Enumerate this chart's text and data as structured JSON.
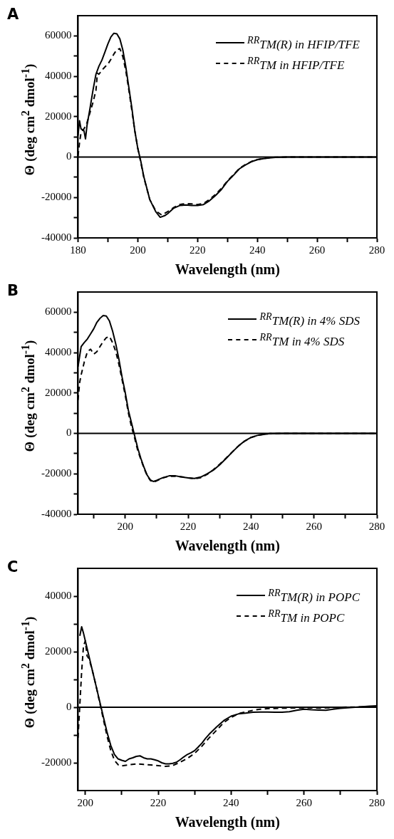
{
  "chart_data": [
    {
      "type": "line",
      "title": "A",
      "xlabel": "Wavelength (nm)",
      "ylabel": "Θ (deg cm$^{2}$ dmol$^{-1}$)",
      "xlim": [
        180,
        280
      ],
      "ylim": [
        -40000,
        70000
      ],
      "xticks": [
        180,
        {
          "value": 190,
          "label": null
        },
        200,
        {
          "value": 210,
          "label": null
        },
        220,
        {
          "value": 230,
          "label": null
        },
        240,
        {
          "value": 250,
          "label": null
        },
        260,
        {
          "value": 270,
          "label": null
        },
        280
      ],
      "yticks": [
        -40000,
        {
          "value": -30000,
          "label": null
        },
        -20000,
        {
          "value": -10000,
          "label": null
        },
        0,
        {
          "value": 10000,
          "label": null
        },
        20000,
        {
          "value": 30000,
          "label": null
        },
        40000,
        {
          "value": 50000,
          "label": null
        },
        60000
      ],
      "grid": false,
      "legend": "top right",
      "ref_lines": [
        {
          "axis": "y",
          "value": 0,
          "color": "#000000"
        }
      ],
      "series": [
        {
          "name": "$^{RR}$TM(R) in HFIP/TFE",
          "color": "#000000",
          "line_style": "solid",
          "x": [
            180,
            180.5,
            181,
            182,
            182.5,
            183,
            184,
            185,
            186,
            187,
            188,
            189,
            190,
            191,
            192,
            193,
            194,
            195,
            196,
            197,
            198,
            199,
            200,
            201,
            202,
            204,
            206,
            207.5,
            209,
            210,
            212,
            214,
            216,
            218,
            220,
            222,
            224,
            226,
            228,
            230,
            232,
            234,
            236,
            238,
            240,
            242,
            244,
            246,
            250,
            260,
            270,
            280
          ],
          "values": [
            10600,
            18000,
            14000,
            13000,
            9000,
            15600,
            24000,
            33000,
            41000,
            45000,
            48000,
            52000,
            56000,
            59500,
            61300,
            61000,
            58500,
            53000,
            44600,
            34500,
            24500,
            13000,
            4300,
            -2000,
            -9600,
            -21000,
            -27000,
            -29800,
            -29000,
            -28000,
            -25300,
            -24000,
            -23700,
            -24000,
            -24000,
            -23500,
            -21600,
            -19000,
            -16000,
            -12000,
            -9000,
            -5800,
            -3900,
            -2300,
            -1300,
            -800,
            -400,
            -200,
            0,
            0,
            0,
            0
          ]
        },
        {
          "name": "$^{RR}$TM in HFIP/TFE",
          "color": "#000000",
          "line_style": "dashed",
          "x": [
            180,
            180.5,
            181,
            182,
            183,
            184,
            185,
            186,
            186.5,
            187,
            188,
            189,
            190,
            191,
            192,
            193,
            194,
            195,
            196,
            197,
            198,
            199,
            200,
            201,
            202,
            204,
            206,
            208,
            210,
            212,
            214,
            216,
            218,
            220,
            222,
            224,
            226,
            228,
            230,
            232,
            234,
            236,
            238,
            240,
            242,
            244,
            246,
            250,
            280
          ],
          "values": [
            500,
            7000,
            12000,
            14000,
            17000,
            22000,
            27000,
            33000,
            41500,
            41000,
            43000,
            44600,
            46000,
            48400,
            51000,
            53200,
            53700,
            49700,
            42700,
            33300,
            23200,
            13000,
            4300,
            -2600,
            -10000,
            -21000,
            -26600,
            -28700,
            -27000,
            -25000,
            -23500,
            -23000,
            -23200,
            -23500,
            -23000,
            -21000,
            -18500,
            -15500,
            -11800,
            -8800,
            -5600,
            -3700,
            -2200,
            -1200,
            -700,
            -300,
            -100,
            0,
            0
          ]
        }
      ]
    },
    {
      "type": "line",
      "title": "B",
      "xlabel": "Wavelength (nm)",
      "ylabel": "Θ (deg cm$^{2}$ dmol$^{-1}$)",
      "xlim": [
        185,
        280
      ],
      "ylim": [
        -40000,
        70000
      ],
      "xticks": [
        {
          "value": 190,
          "label": null
        },
        200,
        {
          "value": 210,
          "label": null
        },
        220,
        {
          "value": 230,
          "label": null
        },
        240,
        {
          "value": 250,
          "label": null
        },
        260,
        {
          "value": 270,
          "label": null
        },
        280
      ],
      "yticks": [
        -40000,
        {
          "value": -30000,
          "label": null
        },
        -20000,
        {
          "value": -10000,
          "label": null
        },
        0,
        {
          "value": 10000,
          "label": null
        },
        20000,
        {
          "value": 30000,
          "label": null
        },
        40000,
        {
          "value": 50000,
          "label": null
        },
        60000
      ],
      "grid": false,
      "legend": "top right",
      "ref_lines": [
        {
          "axis": "y",
          "value": 0,
          "color": "#000000"
        }
      ],
      "series": [
        {
          "name": "$^{RR}$TM(R) in 4% SDS",
          "color": "#000000",
          "line_style": "solid",
          "x": [
            185,
            186,
            187,
            188,
            189,
            190,
            191,
            192,
            193,
            194,
            195,
            196,
            197,
            198,
            199,
            200,
            201,
            202,
            203,
            204,
            205,
            206,
            207,
            208,
            209,
            210,
            212,
            214,
            216,
            218,
            220,
            222,
            224,
            226,
            228,
            230,
            232,
            234,
            236,
            238,
            240,
            242,
            244,
            246,
            250,
            260,
            270,
            280
          ],
          "values": [
            33000,
            43000,
            45000,
            46800,
            49300,
            51800,
            55000,
            57000,
            58400,
            58100,
            55600,
            50600,
            44300,
            36700,
            27900,
            20300,
            11500,
            5200,
            -1100,
            -7400,
            -12500,
            -16900,
            -20700,
            -23000,
            -23800,
            -23200,
            -21900,
            -21000,
            -21000,
            -21600,
            -22000,
            -22300,
            -21600,
            -20000,
            -18200,
            -15600,
            -12500,
            -9300,
            -6200,
            -3700,
            -2000,
            -1000,
            -500,
            -100,
            0,
            0,
            0,
            0
          ]
        },
        {
          "name": "$^{RR}$TM in 4% SDS",
          "color": "#000000",
          "line_style": "dashed",
          "x": [
            185,
            185.5,
            186,
            187,
            188,
            189,
            190,
            191,
            192,
            193,
            194,
            195,
            196,
            197,
            198,
            199,
            200,
            201,
            202,
            203,
            204,
            205,
            206,
            207,
            208,
            209,
            210,
            212,
            214,
            216,
            218,
            220,
            222,
            224,
            226,
            228,
            230,
            232,
            234,
            236,
            238,
            240,
            242,
            244,
            246,
            250,
            280
          ],
          "values": [
            16500,
            25000,
            29000,
            35400,
            40500,
            41700,
            39200,
            40500,
            43000,
            45500,
            47400,
            48000,
            44900,
            40500,
            34200,
            26600,
            19000,
            10200,
            3300,
            -2300,
            -8500,
            -13000,
            -17300,
            -21000,
            -23300,
            -24200,
            -23500,
            -22000,
            -21200,
            -21200,
            -21500,
            -22000,
            -22400,
            -21900,
            -20300,
            -18000,
            -15300,
            -12300,
            -9200,
            -6200,
            -3800,
            -2000,
            -1000,
            -400,
            -100,
            0,
            0
          ]
        }
      ]
    },
    {
      "type": "line",
      "title": "C",
      "xlabel": "Wavelength (nm)",
      "ylabel": "Θ (deg cm$^{2}$ dmol$^{-1}$)",
      "xlim": [
        198,
        280
      ],
      "ylim": [
        -30000,
        50000
      ],
      "xticks": [
        200,
        {
          "value": 210,
          "label": null
        },
        220,
        {
          "value": 230,
          "label": null
        },
        240,
        {
          "value": 250,
          "label": null
        },
        260,
        {
          "value": 270,
          "label": null
        },
        280
      ],
      "yticks": [
        -20000,
        {
          "value": -10000,
          "label": null
        },
        0,
        {
          "value": 10000,
          "label": null
        },
        20000,
        {
          "value": 30000,
          "label": null
        },
        40000
      ],
      "grid": false,
      "legend": "top right",
      "ref_lines": [
        {
          "axis": "y",
          "value": 0,
          "color": "#000000"
        }
      ],
      "series": [
        {
          "name": "$^{RR}$TM(R) in POPC",
          "color": "#000000",
          "line_style": "solid",
          "x": [
            198.5,
            199,
            199.5,
            200,
            201,
            202,
            203,
            204,
            205,
            206,
            207,
            208,
            209,
            210,
            211,
            212,
            213,
            214,
            215,
            216,
            217,
            218,
            219,
            220,
            221,
            222,
            223,
            224,
            225,
            226,
            227,
            228,
            229,
            230,
            231,
            232,
            233,
            234,
            236,
            238,
            240,
            242,
            244,
            246,
            248,
            250,
            252,
            254,
            256,
            258,
            260,
            262,
            264,
            266,
            268,
            270,
            272,
            274,
            276,
            278,
            280
          ],
          "values": [
            25700,
            29000,
            26700,
            23900,
            18400,
            12900,
            7400,
            1800,
            -3700,
            -9200,
            -13800,
            -17000,
            -18600,
            -19100,
            -19500,
            -18600,
            -18200,
            -17700,
            -17500,
            -18200,
            -18600,
            -18600,
            -18900,
            -19300,
            -20000,
            -20400,
            -20400,
            -20200,
            -19800,
            -18900,
            -17900,
            -17000,
            -16400,
            -15600,
            -14300,
            -12900,
            -11200,
            -9700,
            -7100,
            -4800,
            -3200,
            -2400,
            -2100,
            -1800,
            -1700,
            -1700,
            -1800,
            -1800,
            -1600,
            -1100,
            -700,
            -900,
            -1000,
            -1100,
            -700,
            -400,
            -200,
            0,
            200,
            400,
            500
          ]
        },
        {
          "name": "$^{RR}$TM in POPC",
          "color": "#000000",
          "line_style": "dashed",
          "x": [
            198,
            198.5,
            199,
            199.5,
            200,
            200.5,
            201,
            202,
            203,
            204,
            205,
            206,
            207,
            208,
            209,
            210,
            212,
            214,
            216,
            218,
            220,
            222,
            224,
            226,
            228,
            230,
            232,
            234,
            236,
            238,
            240,
            242,
            244,
            246,
            248,
            250,
            255,
            260,
            265,
            270,
            275,
            280
          ],
          "values": [
            -11000,
            900,
            12900,
            22000,
            23900,
            18400,
            17500,
            12900,
            7400,
            1400,
            -4600,
            -10600,
            -15600,
            -19100,
            -20700,
            -21100,
            -20700,
            -20400,
            -20600,
            -20800,
            -21000,
            -21300,
            -21000,
            -19800,
            -18400,
            -16600,
            -14000,
            -11000,
            -8300,
            -5500,
            -3700,
            -2300,
            -1700,
            -1100,
            -700,
            -500,
            -300,
            -200,
            -300,
            0,
            100,
            300
          ]
        }
      ]
    }
  ]
}
